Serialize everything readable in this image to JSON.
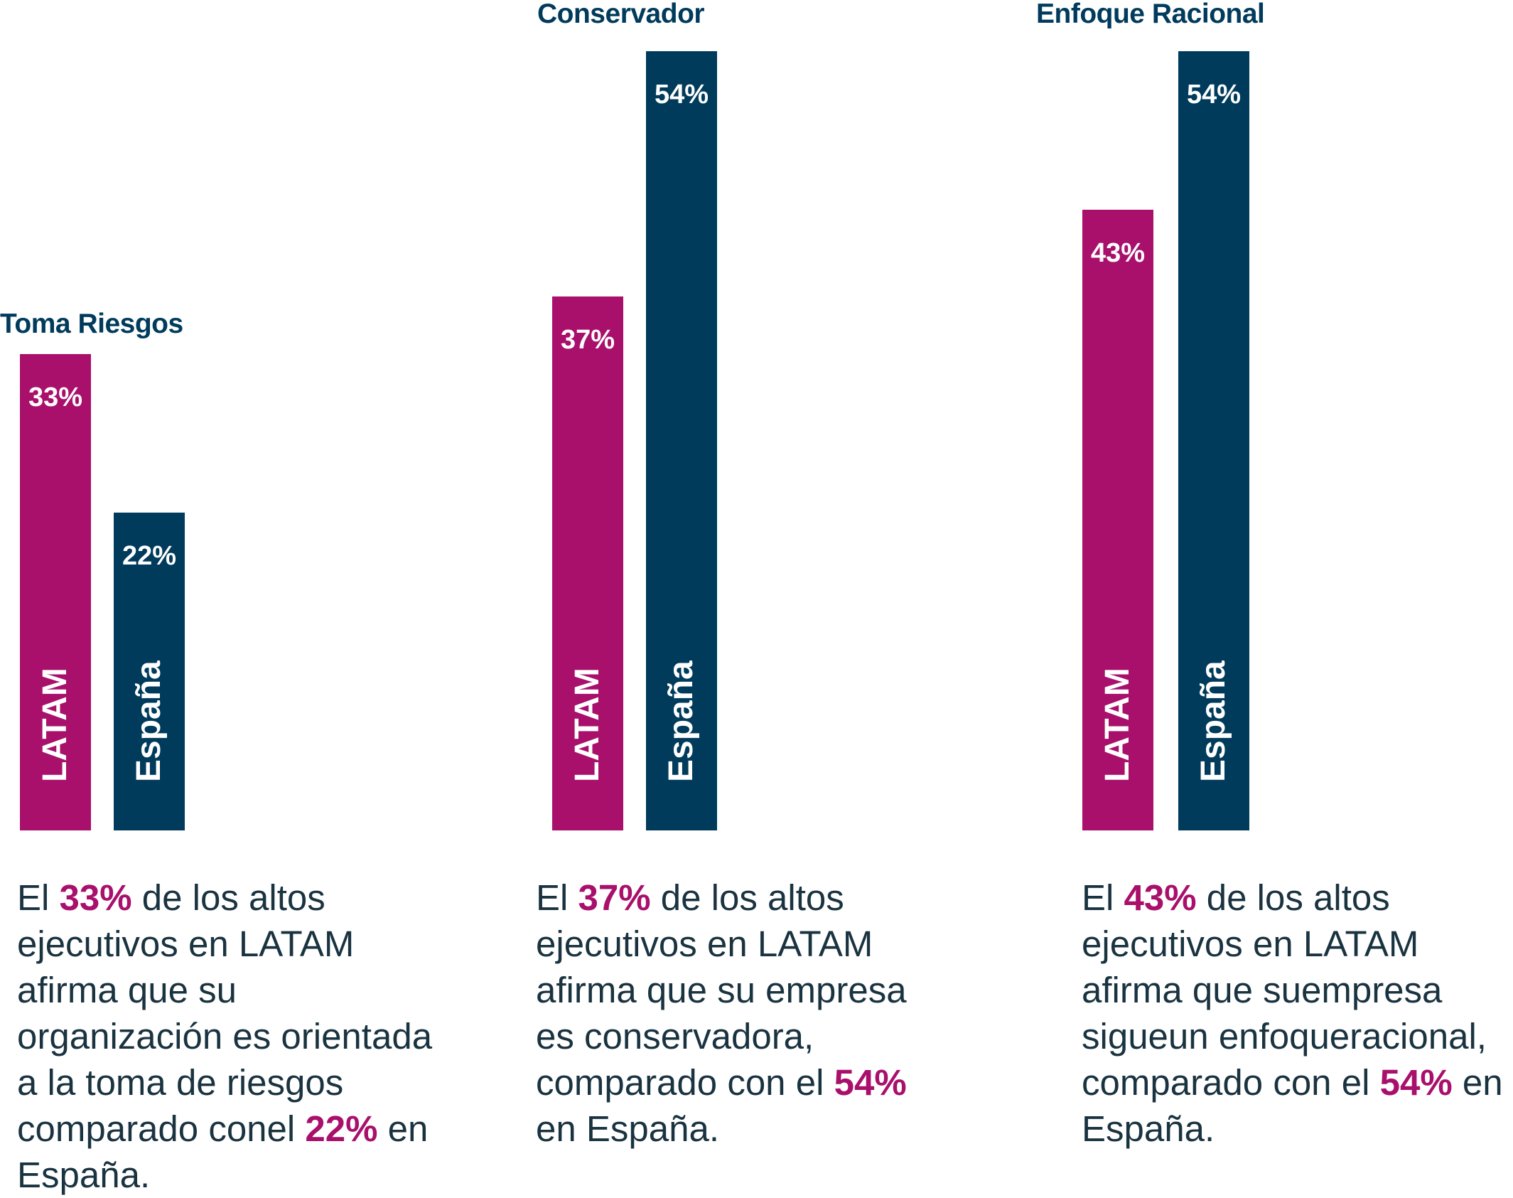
{
  "colors": {
    "latam": "#a8106c",
    "espana": "#003b5c",
    "title": "#003b5c",
    "highlight": "#a8106c",
    "text": "#1a3340"
  },
  "chart_data": [
    {
      "type": "bar",
      "title": "Toma Riesgos",
      "categories": [
        "LATAM",
        "España"
      ],
      "values": [
        33,
        22
      ],
      "value_labels": [
        "33%",
        "22%"
      ],
      "ylim": [
        0,
        100
      ],
      "caption": {
        "pre": "El ",
        "hl1": "33%",
        "mid": " de los altos ejecutivos en LATAM afirma que su organización es orientada a la toma de riesgos comparado conel ",
        "hl2": "22%",
        "post": " en España."
      }
    },
    {
      "type": "bar",
      "title": "Conservador",
      "categories": [
        "LATAM",
        "España"
      ],
      "values": [
        37,
        54
      ],
      "value_labels": [
        "37%",
        "54%"
      ],
      "ylim": [
        0,
        100
      ],
      "caption": {
        "pre": "El ",
        "hl1": "37%",
        "mid": " de los altos ejecutivos en LATAM afirma que su empresa es conservadora, comparado con el ",
        "hl2": "54%",
        "post": " en España."
      }
    },
    {
      "type": "bar",
      "title": "Enfoque Racional",
      "categories": [
        "LATAM",
        "España"
      ],
      "values": [
        43,
        54
      ],
      "value_labels": [
        "43%",
        "54%"
      ],
      "ylim": [
        0,
        100
      ],
      "caption": {
        "pre": "El ",
        "hl1": "43%",
        "mid": " de los altos ejecutivos en LATAM afirma que suempresa sigueun enfoqueracional, comparado con el ",
        "hl2": "54%",
        "post": " en España."
      }
    }
  ]
}
